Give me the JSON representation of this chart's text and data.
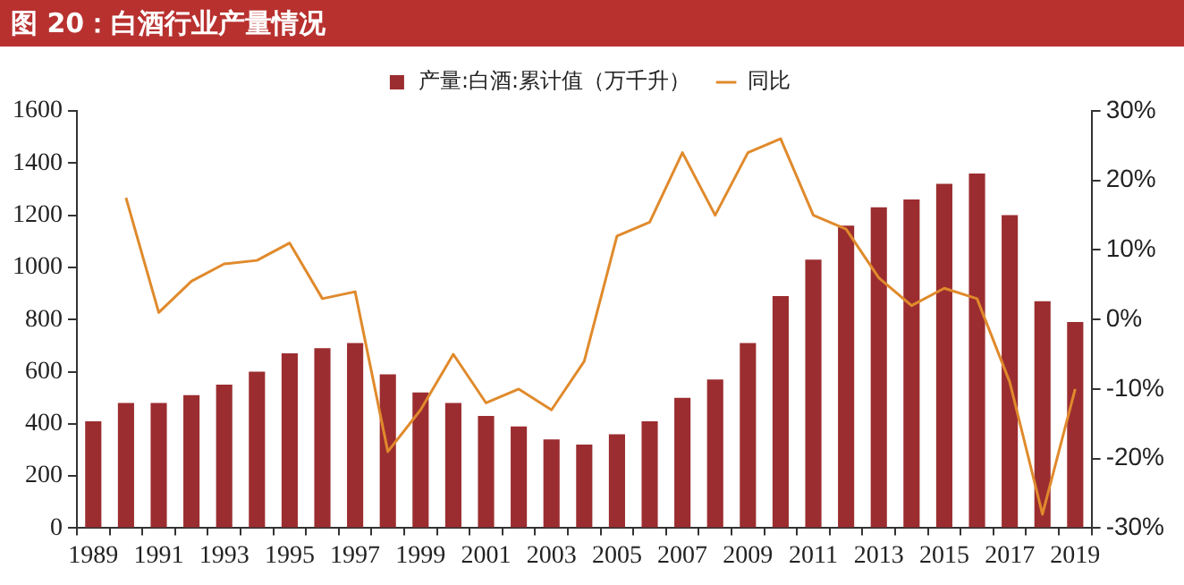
{
  "chart_data": {
    "type": "bar",
    "title": "图 20：白酒行业产量情况",
    "categories": [
      "1989",
      null,
      "1991",
      null,
      "1993",
      null,
      "1995",
      null,
      "1997",
      null,
      "1999",
      null,
      "2001",
      null,
      "2003",
      null,
      "2005",
      null,
      "2007",
      null,
      "2009",
      null,
      "2011",
      null,
      "2013",
      null,
      "2015",
      null,
      "2017",
      null,
      "2019"
    ],
    "series": [
      {
        "name": "产量:白酒:累计值（万千升）",
        "color": "#9b2d30",
        "values": [
          410,
          480,
          480,
          510,
          550,
          600,
          670,
          690,
          710,
          590,
          520,
          480,
          430,
          390,
          340,
          320,
          360,
          410,
          500,
          570,
          710,
          890,
          1030,
          1160,
          1230,
          1260,
          1320,
          1360,
          1200,
          870,
          790
        ]
      },
      {
        "name": "同比",
        "type": "line",
        "axis": "y2",
        "color": "#e08a2c",
        "values": [
          null,
          17.5,
          1,
          5.5,
          8,
          8.5,
          11,
          3,
          4,
          -19,
          -13,
          -5,
          -12,
          -10,
          -13,
          -6,
          12,
          14,
          24,
          15,
          24,
          26,
          15,
          13,
          6,
          2,
          4.5,
          3,
          -9,
          -28,
          -10
        ]
      }
    ],
    "ylim": [
      0,
      1600
    ],
    "yticks": [
      0,
      200,
      400,
      600,
      800,
      1000,
      1200,
      1400,
      1600
    ],
    "y2lim": [
      -30,
      30
    ],
    "y2ticks": [
      {
        "value": -30,
        "label": "-30%"
      },
      {
        "value": -20,
        "label": "-20%"
      },
      {
        "value": -10,
        "label": "-10%"
      },
      {
        "value": 0,
        "label": "0%"
      },
      {
        "value": 10,
        "label": "10%"
      },
      {
        "value": 20,
        "label": "20%"
      },
      {
        "value": 30,
        "label": "30%"
      }
    ],
    "grid": false,
    "legend": "top",
    "marker": "none"
  }
}
